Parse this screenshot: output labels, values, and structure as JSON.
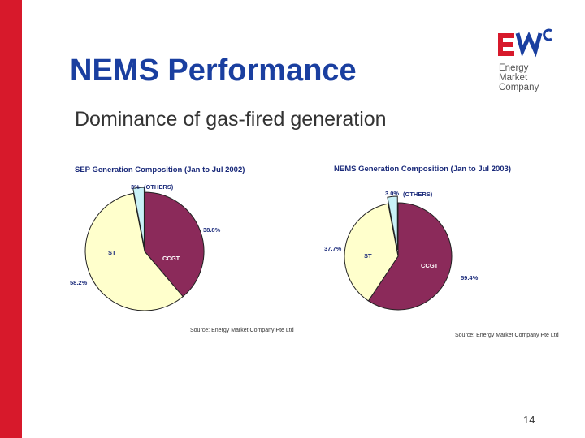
{
  "slide": {
    "title": "NEMS Performance",
    "subtitle": "Dominance of gas-fired generation",
    "page_number": "14"
  },
  "logo": {
    "line1": "Energy",
    "line2": "Market",
    "line3": "Company",
    "colors": {
      "red": "#d7192b",
      "blue": "#1a3fa0"
    }
  },
  "colors": {
    "accent_bar": "#d7192b",
    "title": "#1a3fa0",
    "ccgt": "#8b2a5a",
    "st": "#ffffcc",
    "others": "#c9f1f7"
  },
  "chart_data": [
    {
      "type": "pie",
      "title": "SEP Generation Composition (Jan to Jul 2002)",
      "source": "Source: Energy Market Company Pte Ltd",
      "slices": [
        {
          "name": "CCGT",
          "value": 38.8,
          "label": "38.8%",
          "color": "#8b2a5a"
        },
        {
          "name": "ST",
          "value": 58.2,
          "label": "58.2%",
          "color": "#ffffcc"
        },
        {
          "name": "(OTHERS)",
          "value": 3.0,
          "label": "3%",
          "color": "#c9f1f7"
        }
      ]
    },
    {
      "type": "pie",
      "title": "NEMS Generation Composition (Jan to Jul 2003)",
      "source": "Source: Energy Market Company Pte Ltd",
      "slices": [
        {
          "name": "CCGT",
          "value": 59.4,
          "label": "59.4%",
          "color": "#8b2a5a"
        },
        {
          "name": "ST",
          "value": 37.7,
          "label": "37.7%",
          "color": "#ffffcc"
        },
        {
          "name": "(OTHERS)",
          "value": 3.0,
          "label": "3.0%",
          "color": "#c9f1f7"
        }
      ]
    }
  ]
}
